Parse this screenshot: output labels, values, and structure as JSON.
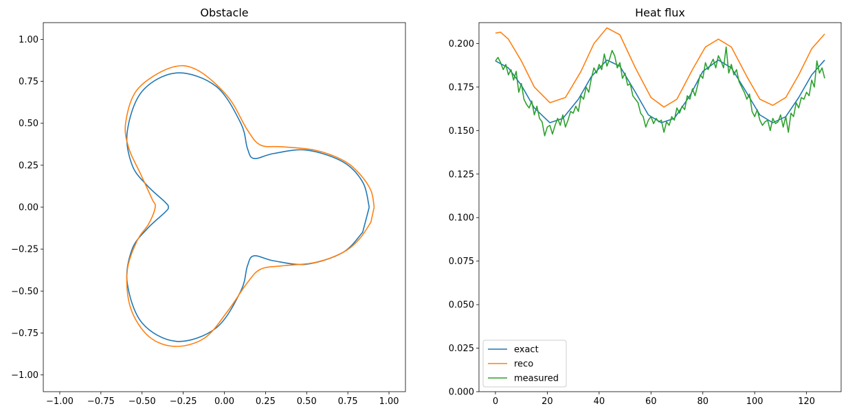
{
  "chart_data": [
    {
      "type": "line",
      "title": "Obstacle",
      "xlabel": "",
      "ylabel": "",
      "xlim": [
        -1.1,
        1.1
      ],
      "ylim": [
        -1.1,
        1.1
      ],
      "grid": false,
      "xticks": [
        -1.0,
        -0.75,
        -0.5,
        -0.25,
        0.0,
        0.25,
        0.5,
        0.75,
        1.0
      ],
      "yticks": [
        -1.0,
        -0.75,
        -0.5,
        -0.25,
        0.0,
        0.25,
        0.5,
        0.75,
        1.0
      ],
      "xtick_labels": [
        "−1.00",
        "−0.75",
        "−0.50",
        "−0.25",
        "0.00",
        "0.25",
        "0.50",
        "0.75",
        "1.00"
      ],
      "ytick_labels": [
        "−1.00",
        "−0.75",
        "−0.50",
        "−0.25",
        "0.00",
        "0.25",
        "0.50",
        "0.75",
        "1.00"
      ],
      "series": [
        {
          "color": "#1f77b4",
          "shape": "closed curve",
          "x": [
            0.88,
            0.84,
            0.72,
            0.5,
            0.3,
            0.18,
            0.14,
            0.1,
            -0.05,
            -0.29,
            -0.5,
            -0.59,
            -0.56,
            -0.47,
            -0.36,
            -0.34,
            -0.36,
            -0.47,
            -0.56,
            -0.59,
            -0.5,
            -0.29,
            -0.05,
            0.1,
            0.14,
            0.18,
            0.3,
            0.5,
            0.72,
            0.84,
            0.88
          ],
          "y": [
            0.0,
            0.15,
            0.27,
            0.34,
            0.32,
            0.29,
            0.35,
            0.5,
            0.72,
            0.8,
            0.69,
            0.45,
            0.25,
            0.13,
            0.03,
            0.0,
            -0.03,
            -0.13,
            -0.25,
            -0.45,
            -0.69,
            -0.8,
            -0.72,
            -0.5,
            -0.35,
            -0.29,
            -0.32,
            -0.34,
            -0.27,
            -0.15,
            0.0
          ]
        },
        {
          "color": "#ff7f0e",
          "shape": "closed curve",
          "x": [
            0.91,
            0.89,
            0.82,
            0.72,
            0.55,
            0.35,
            0.22,
            0.14,
            0.02,
            -0.17,
            -0.33,
            -0.53,
            -0.6,
            -0.58,
            -0.51,
            -0.44,
            -0.42,
            -0.46,
            -0.53,
            -0.59,
            -0.57,
            -0.46,
            -0.3,
            -0.12,
            0.02,
            0.14,
            0.22,
            0.35,
            0.55,
            0.72,
            0.82,
            0.89,
            0.91
          ],
          "y": [
            0.0,
            0.1,
            0.2,
            0.28,
            0.34,
            0.36,
            0.37,
            0.46,
            0.66,
            0.82,
            0.83,
            0.7,
            0.5,
            0.35,
            0.2,
            0.05,
            0.0,
            -0.1,
            -0.2,
            -0.38,
            -0.6,
            -0.77,
            -0.83,
            -0.78,
            -0.62,
            -0.45,
            -0.37,
            -0.35,
            -0.33,
            -0.27,
            -0.19,
            -0.09,
            0.0
          ]
        }
      ]
    },
    {
      "type": "line",
      "title": "Heat flux",
      "xlabel": "",
      "ylabel": "",
      "xlim": [
        -6.35,
        133.35
      ],
      "ylim": [
        0.0,
        0.212
      ],
      "grid": false,
      "legend": "bottom-left",
      "xticks": [
        0,
        20,
        40,
        60,
        80,
        100,
        120
      ],
      "yticks": [
        0.0,
        0.025,
        0.05,
        0.075,
        0.1,
        0.125,
        0.15,
        0.175,
        0.2
      ],
      "xtick_labels": [
        "0",
        "20",
        "40",
        "60",
        "80",
        "100",
        "120"
      ],
      "ytick_labels": [
        "0.000",
        "0.025",
        "0.050",
        "0.075",
        "0.100",
        "0.125",
        "0.150",
        "0.175",
        "0.200"
      ],
      "series": [
        {
          "name": "exact",
          "color": "#1f77b4",
          "x": [
            0,
            5,
            10,
            15,
            21,
            26,
            32,
            37,
            43,
            48,
            54,
            59,
            64,
            69,
            75,
            80,
            86,
            91,
            96,
            102,
            107,
            112,
            117,
            122,
            127
          ],
          "y": [
            0.19,
            0.186,
            0.176,
            0.163,
            0.1545,
            0.157,
            0.168,
            0.181,
            0.1905,
            0.187,
            0.172,
            0.159,
            0.1545,
            0.157,
            0.17,
            0.184,
            0.1905,
            0.186,
            0.174,
            0.159,
            0.1545,
            0.158,
            0.169,
            0.182,
            0.1905
          ]
        },
        {
          "name": "reco",
          "color": "#ff7f0e",
          "x": [
            0,
            2,
            5,
            10,
            15,
            21,
            27,
            33,
            38,
            43,
            48,
            54,
            60,
            65,
            70,
            76,
            81,
            86,
            91,
            97,
            102,
            107,
            112,
            117,
            122,
            127
          ],
          "y": [
            0.206,
            0.2065,
            0.2025,
            0.19,
            0.175,
            0.166,
            0.169,
            0.184,
            0.2,
            0.209,
            0.205,
            0.186,
            0.169,
            0.1635,
            0.168,
            0.185,
            0.198,
            0.2025,
            0.198,
            0.181,
            0.168,
            0.1645,
            0.169,
            0.182,
            0.197,
            0.2055
          ]
        },
        {
          "name": "measured",
          "color": "#2ca02c",
          "x": [
            0,
            1,
            2,
            3,
            4,
            5,
            6,
            7,
            8,
            9,
            10,
            11,
            12,
            13,
            14,
            15,
            16,
            17,
            18,
            19,
            20,
            21,
            22,
            23,
            24,
            25,
            26,
            27,
            28,
            29,
            30,
            31,
            32,
            33,
            34,
            35,
            36,
            37,
            38,
            39,
            40,
            41,
            42,
            43,
            44,
            45,
            46,
            47,
            48,
            49,
            50,
            51,
            52,
            53,
            54,
            55,
            56,
            57,
            58,
            59,
            60,
            61,
            62,
            63,
            64,
            65,
            66,
            67,
            68,
            69,
            70,
            71,
            72,
            73,
            74,
            75,
            76,
            77,
            78,
            79,
            80,
            81,
            82,
            83,
            84,
            85,
            86,
            87,
            88,
            89,
            90,
            91,
            92,
            93,
            94,
            95,
            96,
            97,
            98,
            99,
            100,
            101,
            102,
            103,
            104,
            105,
            106,
            107,
            108,
            109,
            110,
            111,
            112,
            113,
            114,
            115,
            116,
            117,
            118,
            119,
            120,
            121,
            122,
            123,
            124,
            125,
            126,
            127
          ],
          "y": [
            0.19,
            0.192,
            0.189,
            0.185,
            0.188,
            0.182,
            0.185,
            0.179,
            0.184,
            0.172,
            0.177,
            0.168,
            0.165,
            0.163,
            0.167,
            0.159,
            0.164,
            0.157,
            0.155,
            0.147,
            0.152,
            0.153,
            0.148,
            0.153,
            0.157,
            0.153,
            0.159,
            0.152,
            0.156,
            0.161,
            0.16,
            0.164,
            0.161,
            0.17,
            0.168,
            0.175,
            0.172,
            0.18,
            0.186,
            0.183,
            0.188,
            0.185,
            0.194,
            0.187,
            0.191,
            0.196,
            0.193,
            0.186,
            0.189,
            0.18,
            0.183,
            0.176,
            0.177,
            0.17,
            0.168,
            0.166,
            0.16,
            0.158,
            0.152,
            0.156,
            0.158,
            0.154,
            0.157,
            0.155,
            0.156,
            0.149,
            0.155,
            0.153,
            0.158,
            0.156,
            0.163,
            0.16,
            0.164,
            0.162,
            0.17,
            0.168,
            0.174,
            0.17,
            0.176,
            0.182,
            0.18,
            0.189,
            0.185,
            0.188,
            0.191,
            0.186,
            0.193,
            0.19,
            0.186,
            0.198,
            0.183,
            0.188,
            0.182,
            0.185,
            0.178,
            0.175,
            0.172,
            0.168,
            0.171,
            0.161,
            0.158,
            0.162,
            0.156,
            0.153,
            0.155,
            0.156,
            0.15,
            0.157,
            0.154,
            0.155,
            0.159,
            0.152,
            0.158,
            0.149,
            0.16,
            0.158,
            0.166,
            0.163,
            0.169,
            0.168,
            0.172,
            0.17,
            0.179,
            0.175,
            0.19,
            0.183,
            0.186,
            0.18
          ]
        }
      ]
    }
  ]
}
